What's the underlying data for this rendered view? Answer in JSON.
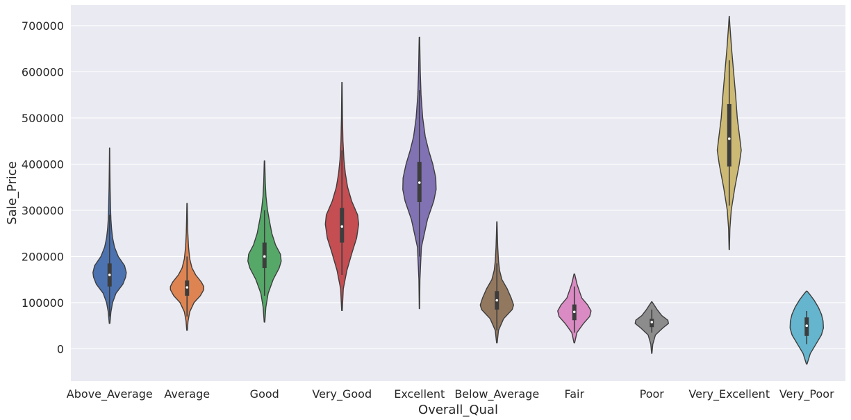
{
  "chart_data": {
    "type": "violin",
    "xlabel": "Overall_Qual",
    "ylabel": "Sale_Price",
    "ylim": [
      -70000,
      745000
    ],
    "yticks": [
      0,
      100000,
      200000,
      300000,
      400000,
      500000,
      600000,
      700000
    ],
    "ytick_labels": [
      "0",
      "100000",
      "200000",
      "300000",
      "400000",
      "500000",
      "600000",
      "700000"
    ],
    "grid": true,
    "background": "#eaeaf2",
    "grid_color": "#ffffff",
    "categories": [
      {
        "name": "Above_Average",
        "color": "#4c72b0",
        "min": 55000,
        "max": 435000,
        "q1": 135000,
        "median": 160000,
        "q3": 185000,
        "whisker_low": 70000,
        "whisker_high": 290000,
        "density": [
          [
            55000,
            0.02
          ],
          [
            80000,
            0.08
          ],
          [
            100000,
            0.18
          ],
          [
            120000,
            0.38
          ],
          [
            140000,
            0.8
          ],
          [
            155000,
            0.96
          ],
          [
            165000,
            1.0
          ],
          [
            180000,
            0.9
          ],
          [
            200000,
            0.52
          ],
          [
            220000,
            0.3
          ],
          [
            240000,
            0.18
          ],
          [
            260000,
            0.12
          ],
          [
            280000,
            0.08
          ],
          [
            300000,
            0.06
          ],
          [
            350000,
            0.03
          ],
          [
            400000,
            0.015
          ],
          [
            435000,
            0.008
          ]
        ]
      },
      {
        "name": "Average",
        "color": "#dd8452",
        "min": 40000,
        "max": 315000,
        "q1": 115000,
        "median": 133000,
        "q3": 148000,
        "whisker_low": 70000,
        "whisker_high": 200000,
        "density": [
          [
            40000,
            0.02
          ],
          [
            60000,
            0.06
          ],
          [
            80000,
            0.16
          ],
          [
            100000,
            0.42
          ],
          [
            115000,
            0.8
          ],
          [
            128000,
            1.0
          ],
          [
            135000,
            1.0
          ],
          [
            145000,
            0.85
          ],
          [
            160000,
            0.52
          ],
          [
            175000,
            0.3
          ],
          [
            195000,
            0.16
          ],
          [
            220000,
            0.09
          ],
          [
            250000,
            0.05
          ],
          [
            280000,
            0.025
          ],
          [
            315000,
            0.01
          ]
        ]
      },
      {
        "name": "Good",
        "color": "#55a868",
        "min": 58000,
        "max": 407000,
        "q1": 175000,
        "median": 200000,
        "q3": 230000,
        "whisker_low": 115000,
        "whisker_high": 300000,
        "density": [
          [
            58000,
            0.02
          ],
          [
            90000,
            0.08
          ],
          [
            120000,
            0.22
          ],
          [
            150000,
            0.52
          ],
          [
            175000,
            0.88
          ],
          [
            190000,
            1.0
          ],
          [
            205000,
            0.95
          ],
          [
            225000,
            0.66
          ],
          [
            250000,
            0.44
          ],
          [
            280000,
            0.28
          ],
          [
            300000,
            0.18
          ],
          [
            330000,
            0.09
          ],
          [
            360000,
            0.05
          ],
          [
            407000,
            0.015
          ]
        ]
      },
      {
        "name": "Very_Good",
        "color": "#c44e52",
        "min": 83000,
        "max": 577000,
        "q1": 230000,
        "median": 265000,
        "q3": 305000,
        "whisker_low": 160000,
        "whisker_high": 430000,
        "density": [
          [
            83000,
            0.02
          ],
          [
            130000,
            0.08
          ],
          [
            170000,
            0.3
          ],
          [
            210000,
            0.62
          ],
          [
            240000,
            0.88
          ],
          [
            270000,
            1.0
          ],
          [
            290000,
            0.94
          ],
          [
            320000,
            0.58
          ],
          [
            350000,
            0.34
          ],
          [
            380000,
            0.2
          ],
          [
            410000,
            0.12
          ],
          [
            450000,
            0.06
          ],
          [
            500000,
            0.03
          ],
          [
            577000,
            0.01
          ]
        ]
      },
      {
        "name": "Excellent",
        "color": "#8172b3",
        "min": 87000,
        "max": 675000,
        "q1": 318000,
        "median": 360000,
        "q3": 405000,
        "whisker_low": 200000,
        "whisker_high": 560000,
        "density": [
          [
            87000,
            0.01
          ],
          [
            150000,
            0.03
          ],
          [
            220000,
            0.12
          ],
          [
            280000,
            0.48
          ],
          [
            320000,
            0.86
          ],
          [
            345000,
            1.0
          ],
          [
            370000,
            0.98
          ],
          [
            400000,
            0.8
          ],
          [
            430000,
            0.55
          ],
          [
            460000,
            0.35
          ],
          [
            500000,
            0.2
          ],
          [
            550000,
            0.1
          ],
          [
            600000,
            0.05
          ],
          [
            675000,
            0.015
          ]
        ]
      },
      {
        "name": "Below_Average",
        "color": "#937860",
        "min": 13000,
        "max": 275000,
        "q1": 85000,
        "median": 105000,
        "q3": 125000,
        "whisker_low": 40000,
        "whisker_high": 185000,
        "density": [
          [
            13000,
            0.02
          ],
          [
            40000,
            0.1
          ],
          [
            65000,
            0.4
          ],
          [
            85000,
            0.92
          ],
          [
            95000,
            1.0
          ],
          [
            110000,
            0.86
          ],
          [
            130000,
            0.62
          ],
          [
            150000,
            0.3
          ],
          [
            170000,
            0.16
          ],
          [
            190000,
            0.1
          ],
          [
            220000,
            0.05
          ],
          [
            250000,
            0.025
          ],
          [
            275000,
            0.01
          ]
        ]
      },
      {
        "name": "Fair",
        "color": "#da8bc3",
        "min": 13000,
        "max": 162000,
        "q1": 62000,
        "median": 80000,
        "q3": 96000,
        "whisker_low": 35000,
        "whisker_high": 135000,
        "density": [
          [
            13000,
            0.02
          ],
          [
            35000,
            0.15
          ],
          [
            55000,
            0.55
          ],
          [
            70000,
            0.92
          ],
          [
            82000,
            1.0
          ],
          [
            95000,
            0.8
          ],
          [
            110000,
            0.45
          ],
          [
            125000,
            0.3
          ],
          [
            140000,
            0.16
          ],
          [
            162000,
            0.02
          ]
        ]
      },
      {
        "name": "Poor",
        "color": "#8c8c8c",
        "min": -10000,
        "max": 102000,
        "q1": 47000,
        "median": 58000,
        "q3": 65000,
        "whisker_low": 35000,
        "whisker_high": 85000,
        "density": [
          [
            -10000,
            0.01
          ],
          [
            10000,
            0.06
          ],
          [
            30000,
            0.22
          ],
          [
            45000,
            0.66
          ],
          [
            55000,
            1.0
          ],
          [
            62000,
            0.96
          ],
          [
            72000,
            0.6
          ],
          [
            85000,
            0.32
          ],
          [
            95000,
            0.14
          ],
          [
            102000,
            0.01
          ]
        ]
      },
      {
        "name": "Very_Excellent",
        "color": "#ccb974",
        "min": 215000,
        "max": 720000,
        "q1": 395000,
        "median": 455000,
        "q3": 530000,
        "whisker_low": 310000,
        "whisker_high": 625000,
        "density": [
          [
            215000,
            0.01
          ],
          [
            260000,
            0.04
          ],
          [
            300000,
            0.12
          ],
          [
            350000,
            0.34
          ],
          [
            400000,
            0.6
          ],
          [
            430000,
            0.72
          ],
          [
            460000,
            0.62
          ],
          [
            500000,
            0.48
          ],
          [
            550000,
            0.38
          ],
          [
            600000,
            0.26
          ],
          [
            650000,
            0.14
          ],
          [
            700000,
            0.04
          ],
          [
            720000,
            0.008
          ]
        ]
      },
      {
        "name": "Very_Poor",
        "color": "#64b5cd",
        "min": -33000,
        "max": 125000,
        "q1": 28000,
        "median": 50000,
        "q3": 68000,
        "whisker_low": 10000,
        "whisker_high": 82000,
        "density": [
          [
            -33000,
            0.02
          ],
          [
            -10000,
            0.22
          ],
          [
            10000,
            0.55
          ],
          [
            30000,
            0.88
          ],
          [
            45000,
            1.0
          ],
          [
            60000,
            0.98
          ],
          [
            75000,
            0.88
          ],
          [
            90000,
            0.7
          ],
          [
            105000,
            0.45
          ],
          [
            118000,
            0.18
          ],
          [
            125000,
            0.02
          ]
        ]
      }
    ]
  }
}
